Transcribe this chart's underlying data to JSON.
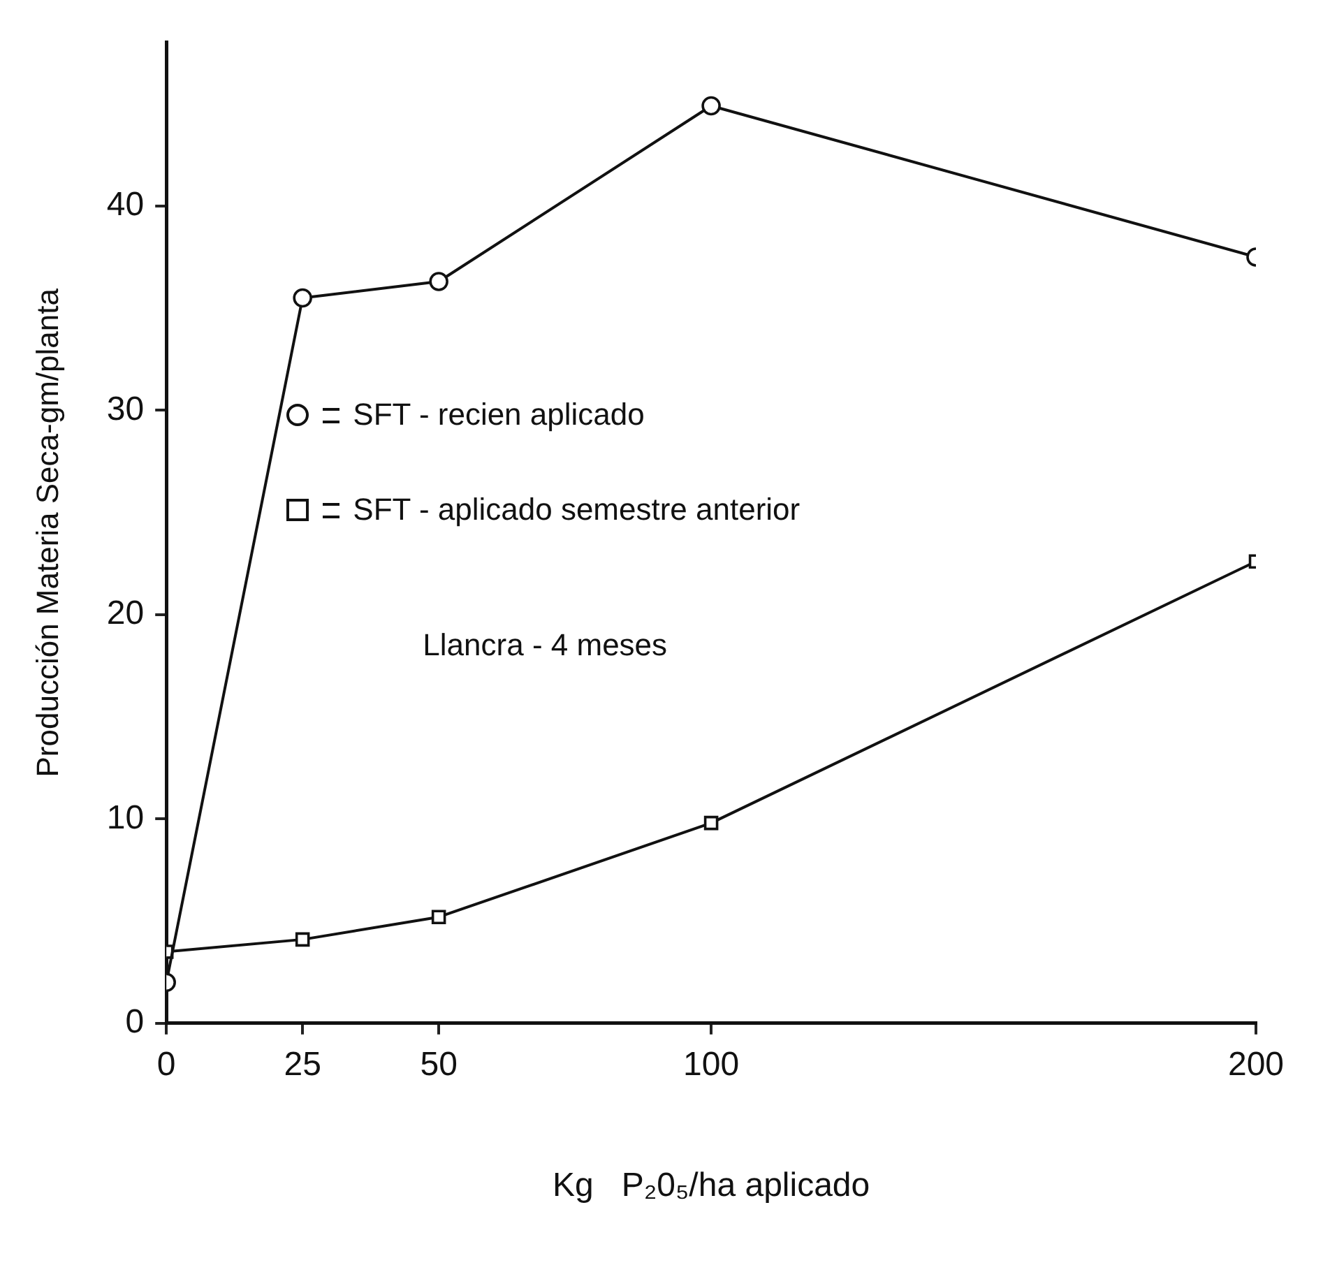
{
  "chart_data": {
    "type": "line",
    "xlabel": "Kg   P₂0₅/ha aplicado",
    "ylabel": "Producción Materia Seca-gm/planta",
    "x": [
      0,
      25,
      50,
      100,
      200
    ],
    "series": [
      {
        "name": "SFT - recien aplicado",
        "color": "#111111",
        "marker": "circle",
        "values": [
          2.0,
          35.5,
          36.3,
          44.9,
          37.5
        ]
      },
      {
        "name": "SFT - aplicado semestre anterior",
        "color": "#111111",
        "marker": "square",
        "values": [
          3.5,
          4.1,
          5.2,
          9.8,
          22.6
        ]
      }
    ],
    "xlim": [
      0,
      200
    ],
    "xticks": [
      0,
      25,
      50,
      100,
      200
    ],
    "ylim": [
      0,
      48
    ],
    "yticks": [
      0,
      10,
      20,
      30,
      40
    ],
    "grid": false,
    "legend": "left",
    "line_style": "solid",
    "annotations": [
      "Llancra - 4 meses"
    ]
  }
}
